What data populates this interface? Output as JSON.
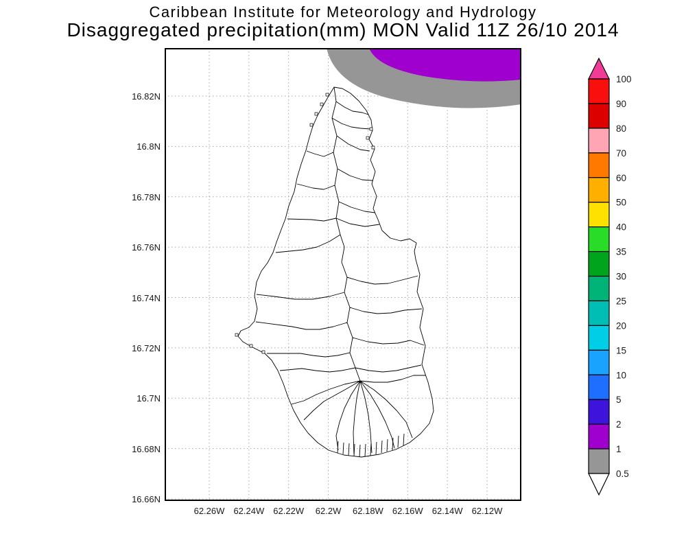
{
  "title": {
    "line1": "Caribbean Institute for Meteorology and Hydrology",
    "line2": "Disaggregated precipitation(mm) MON Valid 11Z 26/10 2014"
  },
  "axes": {
    "lat_ticks": [
      "16.82N",
      "16.8N",
      "16.78N",
      "16.76N",
      "16.74N",
      "16.72N",
      "16.7N",
      "16.68N",
      "16.66N"
    ],
    "lon_ticks": [
      "62.26W",
      "62.24W",
      "62.22W",
      "62.2W",
      "62.18W",
      "62.16W",
      "62.14W",
      "62.12W"
    ]
  },
  "colorbar": {
    "labels_top_to_bottom": [
      "100",
      "90",
      "80",
      "70",
      "60",
      "50",
      "40",
      "35",
      "30",
      "25",
      "20",
      "15",
      "10",
      "5",
      "2",
      "1",
      "0.5"
    ],
    "colors_top_to_bottom": [
      "#FA0F0F",
      "#DC0000",
      "#FFA5B4",
      "#FF7800",
      "#FFAF00",
      "#FFE100",
      "#28DC28",
      "#00A51E",
      "#00B478",
      "#00BEB4",
      "#00CDE6",
      "#19A3FF",
      "#1E6EFF",
      "#3C14DC",
      "#A000CD",
      "#969696"
    ],
    "above_max_arrow_color": "#F03C96",
    "below_min_arrow_color": "#FFFFFF"
  },
  "chart_data": {
    "type": "heatmap",
    "title": "Disaggregated precipitation(mm) MON Valid 11Z 26/10 2014",
    "subtitle": "Caribbean Institute for Meteorology and Hydrology",
    "variable": "precipitation",
    "units": "mm",
    "domain_label": "MON",
    "valid_time": "11Z 26/10 2014",
    "x": {
      "ticks": [
        "62.26W",
        "62.24W",
        "62.22W",
        "62.2W",
        "62.18W",
        "62.16W",
        "62.14W",
        "62.12W"
      ]
    },
    "y": {
      "ticks": [
        "16.82N",
        "16.8N",
        "16.78N",
        "16.76N",
        "16.74N",
        "16.72N",
        "16.7N",
        "16.68N",
        "16.66N"
      ]
    },
    "grid": true,
    "legend_position": "right",
    "colorbar_levels_mm": [
      0.5,
      1,
      2,
      5,
      10,
      15,
      20,
      25,
      30,
      35,
      40,
      50,
      60,
      70,
      80,
      90,
      100
    ],
    "colorbar_colors_low_to_high": [
      "#969696",
      "#A000CD",
      "#3C14DC",
      "#1E6EFF",
      "#19A3FF",
      "#00CDE6",
      "#00BEB4",
      "#00B478",
      "#00A51E",
      "#28DC28",
      "#FFE100",
      "#FFAF00",
      "#FF7800",
      "#FFA5B4",
      "#DC0000",
      "#FA0F0F"
    ],
    "above_max_arrow_color": "#F03C96",
    "below_min_arrow_color": "#FFFFFF",
    "shaded_regions": [
      {
        "value_range_mm": "0.5-1",
        "color": "#969696",
        "location": "offshore band entering top-right corner of map"
      },
      {
        "value_range_mm": "1-2",
        "color": "#A000CD",
        "location": "offshore patch at top-right corner, north of island"
      }
    ],
    "map_feature": "Montserrat coastline with internal watershed boundaries"
  }
}
